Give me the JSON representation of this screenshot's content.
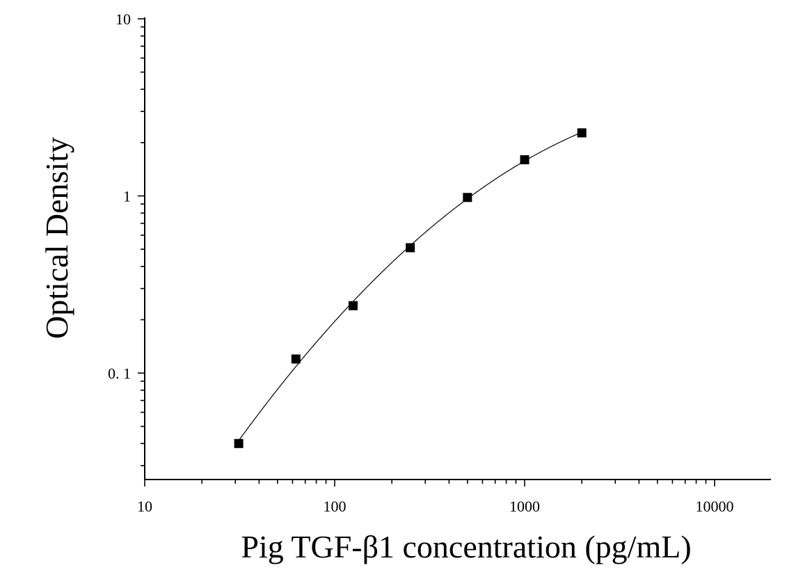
{
  "chart_data": {
    "type": "scatter",
    "title": "",
    "xlabel": "Pig TGF-β1 concentration (pg/mL)",
    "ylabel": "Optical Density",
    "x_scale": "log",
    "y_scale": "log",
    "xlim": [
      10,
      20000
    ],
    "ylim": [
      0.025,
      10
    ],
    "x_ticks": [
      10,
      100,
      1000,
      10000
    ],
    "x_tick_labels": [
      "10",
      "100",
      "1000",
      "10000"
    ],
    "y_ticks": [
      0.1,
      1,
      10
    ],
    "y_tick_labels": [
      "0. 1",
      "1",
      "10"
    ],
    "grid": false,
    "legend": "none",
    "series": [
      {
        "marker": "square",
        "color": "#000000",
        "x": [
          31.25,
          62.5,
          125,
          250,
          500,
          1000,
          2000
        ],
        "y": [
          0.04,
          0.12,
          0.24,
          0.51,
          0.98,
          1.6,
          2.27
        ]
      }
    ],
    "fit_curve": {
      "style": "line",
      "color": "#000000",
      "x_range": [
        31.25,
        2000
      ]
    }
  }
}
